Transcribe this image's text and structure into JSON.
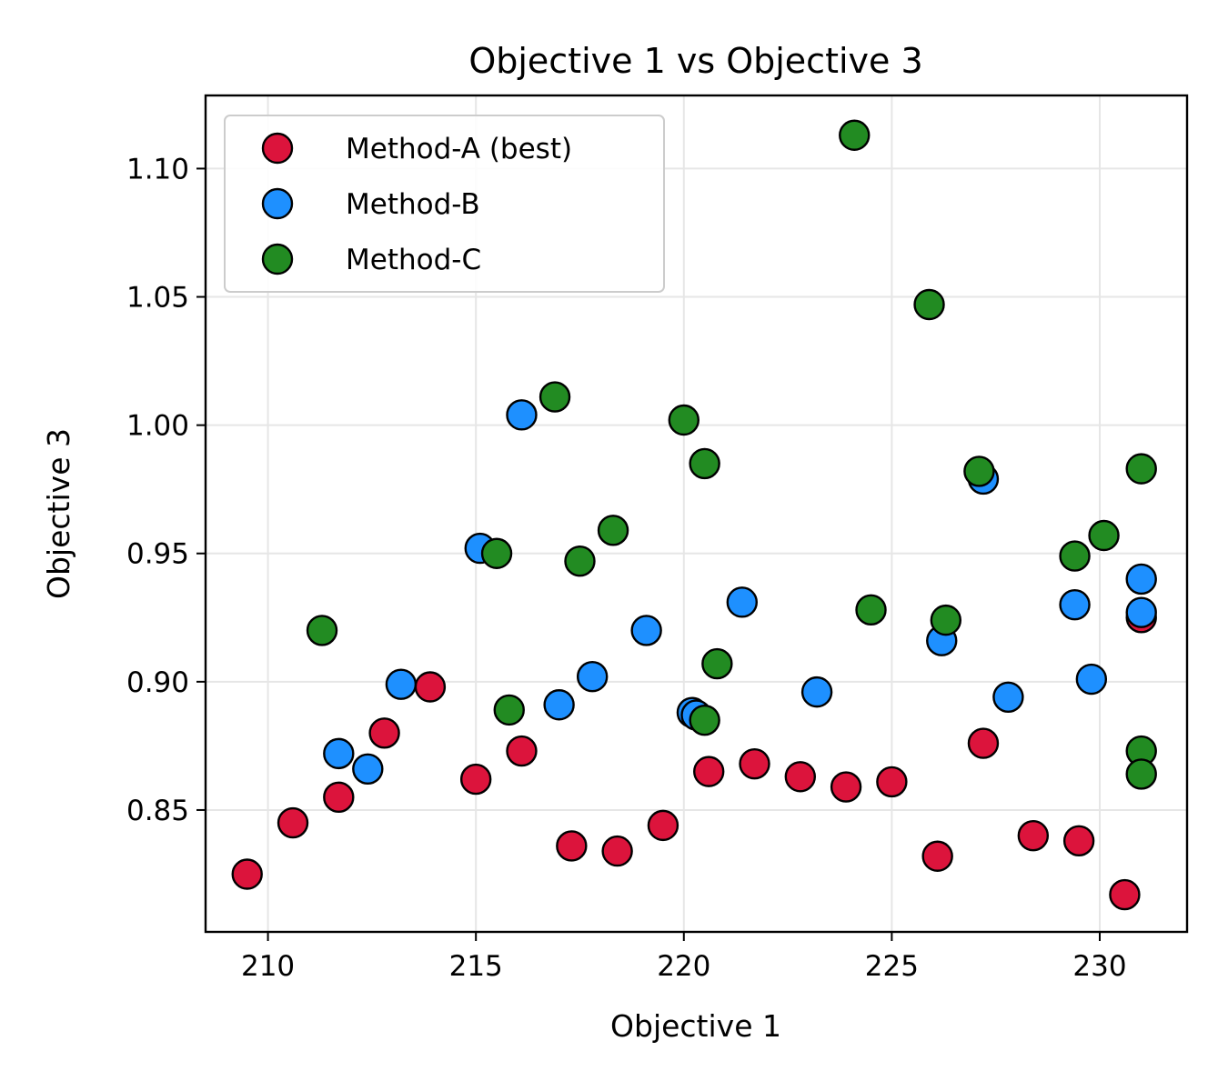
{
  "chart_data": {
    "type": "scatter",
    "title": "Objective 1 vs Objective 3",
    "xlabel": "Objective 1",
    "ylabel": "Objective 3",
    "xlim": [
      208.5,
      232.1
    ],
    "ylim": [
      0.8025,
      1.1285
    ],
    "xticks": [
      210,
      215,
      220,
      225,
      230
    ],
    "xtick_labels": [
      "210",
      "215",
      "220",
      "225",
      "230"
    ],
    "yticks": [
      0.85,
      0.9,
      0.95,
      1.0,
      1.05,
      1.1
    ],
    "ytick_labels": [
      "0.85",
      "0.90",
      "0.95",
      "1.00",
      "1.05",
      "1.10"
    ],
    "grid": true,
    "legend_position": "upper-left",
    "series": [
      {
        "name": "Method-A (best)",
        "color": "#dc143c",
        "points": [
          [
            209.5,
            0.825
          ],
          [
            210.6,
            0.845
          ],
          [
            211.7,
            0.855
          ],
          [
            212.8,
            0.88
          ],
          [
            213.9,
            0.898
          ],
          [
            215.0,
            0.862
          ],
          [
            216.1,
            0.873
          ],
          [
            217.3,
            0.836
          ],
          [
            218.4,
            0.834
          ],
          [
            219.5,
            0.844
          ],
          [
            220.6,
            0.865
          ],
          [
            221.7,
            0.868
          ],
          [
            222.8,
            0.863
          ],
          [
            223.9,
            0.859
          ],
          [
            225.0,
            0.861
          ],
          [
            226.1,
            0.832
          ],
          [
            227.2,
            0.876
          ],
          [
            228.4,
            0.84
          ],
          [
            229.5,
            0.838
          ],
          [
            230.6,
            0.817
          ],
          [
            231.0,
            0.925
          ]
        ]
      },
      {
        "name": "Method-B",
        "color": "#1e90ff",
        "points": [
          [
            211.7,
            0.872
          ],
          [
            212.4,
            0.866
          ],
          [
            213.2,
            0.899
          ],
          [
            215.1,
            0.952
          ],
          [
            216.1,
            1.004
          ],
          [
            217.0,
            0.891
          ],
          [
            217.8,
            0.902
          ],
          [
            219.1,
            0.92
          ],
          [
            220.2,
            0.888
          ],
          [
            220.3,
            0.887
          ],
          [
            221.4,
            0.931
          ],
          [
            223.2,
            0.896
          ],
          [
            226.2,
            0.916
          ],
          [
            227.2,
            0.979
          ],
          [
            227.8,
            0.894
          ],
          [
            229.4,
            0.93
          ],
          [
            229.8,
            0.901
          ],
          [
            231.0,
            0.94
          ],
          [
            231.0,
            0.927
          ]
        ]
      },
      {
        "name": "Method-C",
        "color": "#228b22",
        "points": [
          [
            211.3,
            0.92
          ],
          [
            215.5,
            0.95
          ],
          [
            215.8,
            0.889
          ],
          [
            216.9,
            1.011
          ],
          [
            217.5,
            0.947
          ],
          [
            218.3,
            0.959
          ],
          [
            220.0,
            1.002
          ],
          [
            220.5,
            0.985
          ],
          [
            220.8,
            0.907
          ],
          [
            220.5,
            0.885
          ],
          [
            224.1,
            1.113
          ],
          [
            224.5,
            0.928
          ],
          [
            225.9,
            1.047
          ],
          [
            226.3,
            0.924
          ],
          [
            227.1,
            0.982
          ],
          [
            229.4,
            0.949
          ],
          [
            230.1,
            0.957
          ],
          [
            231.0,
            0.983
          ],
          [
            231.0,
            0.873
          ],
          [
            231.0,
            0.864
          ]
        ]
      }
    ]
  }
}
